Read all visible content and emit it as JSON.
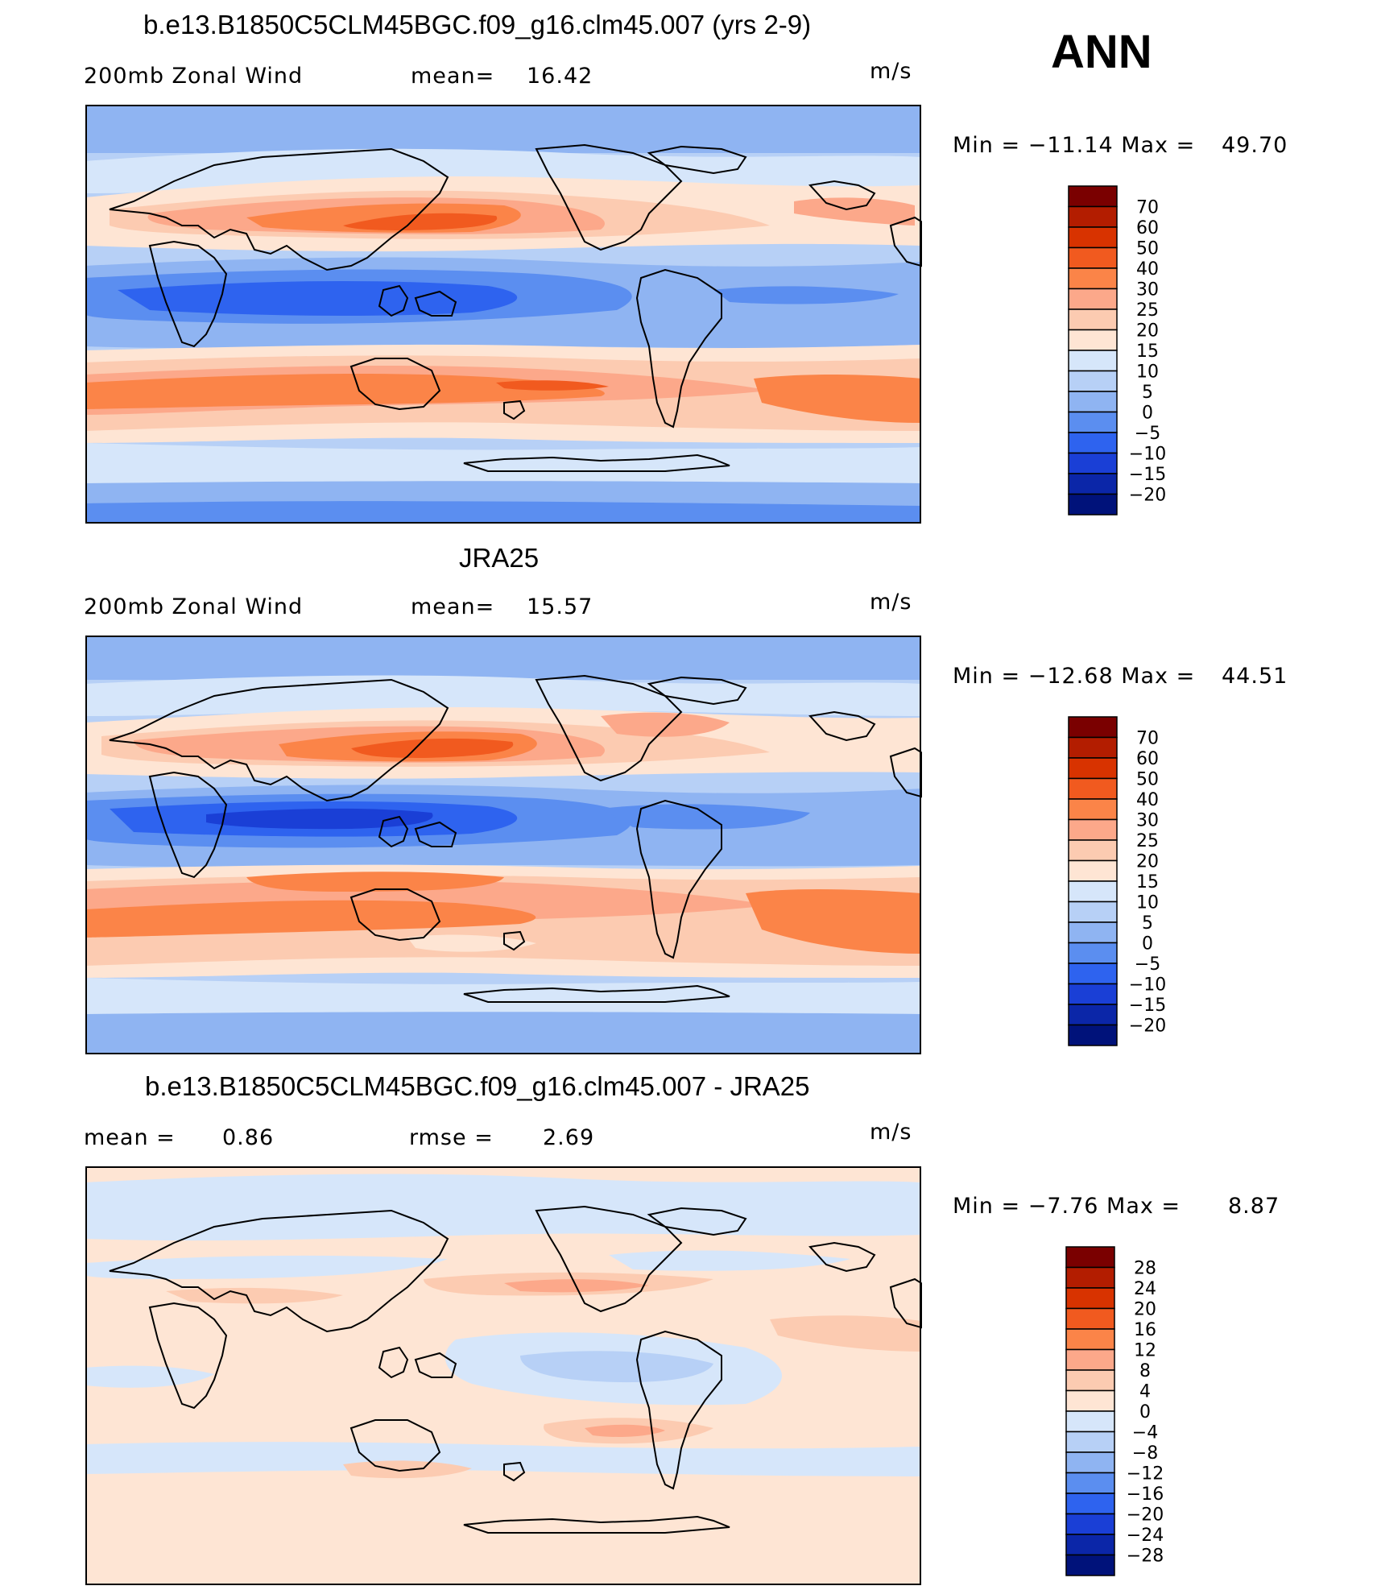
{
  "season": "ANN",
  "panels": [
    {
      "id": "model",
      "title": "b.e13.B1850C5CLM45BGC.f09_g16.clm45.007 (yrs 2-9)",
      "left_label": "200mb Zonal Wind",
      "mid_label": "mean=",
      "mid_value": "16.42",
      "units": "m/s",
      "range_text": "Min = −11.14 Max =",
      "range_max": "49.70",
      "colorbar": {
        "labels": [
          "70",
          "60",
          "50",
          "40",
          "30",
          "25",
          "20",
          "15",
          "10",
          "5",
          "0",
          "−5",
          "−10",
          "−15",
          "−20"
        ],
        "colors": [
          "#7a0000",
          "#b31d00",
          "#d83300",
          "#f15a1f",
          "#fb8448",
          "#fca88a",
          "#fccbb1",
          "#fee5d4",
          "#d6e6fa",
          "#b7d0f6",
          "#8fb4f2",
          "#5b8ef0",
          "#2e63ef",
          "#1a3fd6",
          "#0b26a8",
          "#00127a"
        ]
      }
    },
    {
      "id": "obs",
      "title": "JRA25",
      "left_label": "200mb Zonal Wind",
      "mid_label": "mean=",
      "mid_value": "15.57",
      "units": "m/s",
      "range_text": "Min = −12.68 Max =",
      "range_max": "44.51",
      "colorbar": {
        "labels": [
          "70",
          "60",
          "50",
          "40",
          "30",
          "25",
          "20",
          "15",
          "10",
          "5",
          "0",
          "−5",
          "−10",
          "−15",
          "−20"
        ],
        "colors": [
          "#7a0000",
          "#b31d00",
          "#d83300",
          "#f15a1f",
          "#fb8448",
          "#fca88a",
          "#fccbb1",
          "#fee5d4",
          "#d6e6fa",
          "#b7d0f6",
          "#8fb4f2",
          "#5b8ef0",
          "#2e63ef",
          "#1a3fd6",
          "#0b26a8",
          "#00127a"
        ]
      }
    },
    {
      "id": "diff",
      "title": "b.e13.B1850C5CLM45BGC.f09_g16.clm45.007 - JRA25",
      "left_label": "mean =",
      "left_value": "0.86",
      "mid_label": "rmse =",
      "mid_value": "2.69",
      "units": "m/s",
      "range_text": "Min = −7.76 Max =",
      "range_max": "8.87",
      "colorbar": {
        "labels": [
          "28",
          "24",
          "20",
          "16",
          "12",
          "8",
          "4",
          "0",
          "−4",
          "−8",
          "−12",
          "−16",
          "−20",
          "−24",
          "−28"
        ],
        "colors": [
          "#7a0000",
          "#b31d00",
          "#d83300",
          "#f15a1f",
          "#fb8448",
          "#fca88a",
          "#fccbb1",
          "#fee5d4",
          "#d6e6fa",
          "#b7d0f6",
          "#8fb4f2",
          "#5b8ef0",
          "#2e63ef",
          "#1a3fd6",
          "#0b26a8",
          "#00127a"
        ]
      }
    }
  ],
  "colors": {
    "land_outline": "#000000",
    "tropical_easterly": "#2e63ef",
    "westerly_jet": "#fb8448",
    "weak": "#fee5d4",
    "weak_neg": "#d6e6fa"
  }
}
